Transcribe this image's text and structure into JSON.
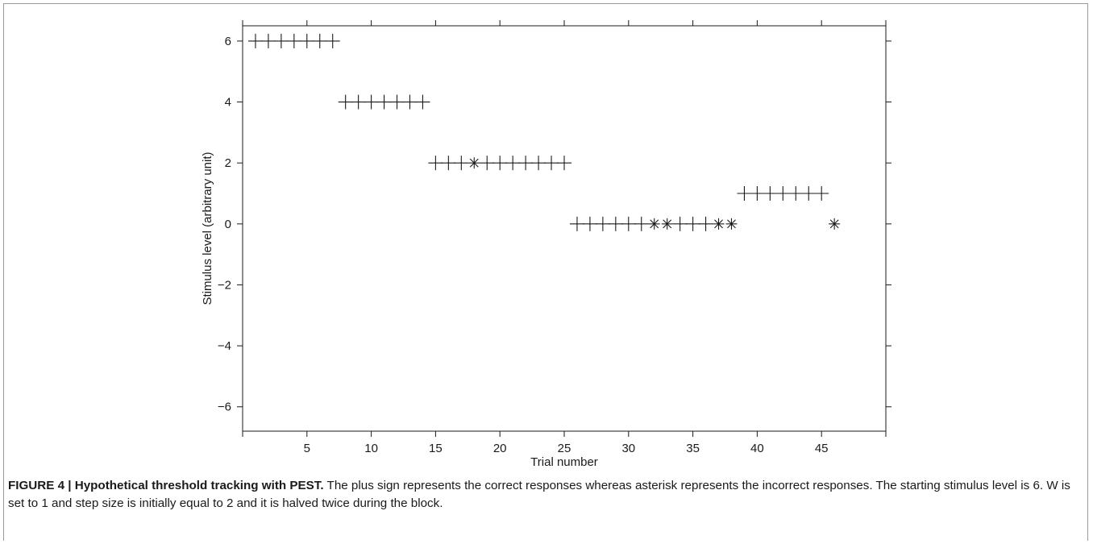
{
  "chart_data": {
    "type": "scatter",
    "xlabel": "Trial number",
    "ylabel": "Stimulus level (arbitrary unit)",
    "xlim": [
      0,
      50
    ],
    "ylim": [
      -6.8,
      6.5
    ],
    "x_ticks": [
      5,
      10,
      15,
      20,
      25,
      30,
      35,
      40,
      45
    ],
    "y_ticks": [
      -6,
      -4,
      -2,
      0,
      2,
      4,
      6
    ],
    "grid": false,
    "series": [
      {
        "name": "plus",
        "marker": "+",
        "points": [
          [
            1,
            6
          ],
          [
            2,
            6
          ],
          [
            3,
            6
          ],
          [
            4,
            6
          ],
          [
            5,
            6
          ],
          [
            6,
            6
          ],
          [
            7,
            6
          ],
          [
            8,
            4
          ],
          [
            9,
            4
          ],
          [
            10,
            4
          ],
          [
            11,
            4
          ],
          [
            12,
            4
          ],
          [
            13,
            4
          ],
          [
            14,
            4
          ],
          [
            15,
            2
          ],
          [
            16,
            2
          ],
          [
            17,
            2
          ],
          [
            19,
            2
          ],
          [
            20,
            2
          ],
          [
            21,
            2
          ],
          [
            22,
            2
          ],
          [
            23,
            2
          ],
          [
            24,
            2
          ],
          [
            25,
            2
          ],
          [
            26,
            0
          ],
          [
            27,
            0
          ],
          [
            28,
            0
          ],
          [
            29,
            0
          ],
          [
            30,
            0
          ],
          [
            31,
            0
          ],
          [
            34,
            0
          ],
          [
            35,
            0
          ],
          [
            36,
            0
          ],
          [
            39,
            1
          ],
          [
            40,
            1
          ],
          [
            41,
            1
          ],
          [
            42,
            1
          ],
          [
            43,
            1
          ],
          [
            44,
            1
          ],
          [
            45,
            1
          ]
        ]
      },
      {
        "name": "asterisk",
        "marker": "*",
        "points": [
          [
            18,
            2
          ],
          [
            32,
            0
          ],
          [
            33,
            0
          ],
          [
            37,
            0
          ],
          [
            38,
            0
          ],
          [
            46,
            0
          ]
        ]
      }
    ]
  },
  "caption": {
    "label": "FIGURE 4 | Hypothetical threshold tracking with PEST.",
    "text": " The plus sign represents the correct responses whereas asterisk represents the incorrect responses. The starting stimulus level is 6. W is set to 1 and step size is initially equal to 2 and it is halved twice during the block."
  }
}
